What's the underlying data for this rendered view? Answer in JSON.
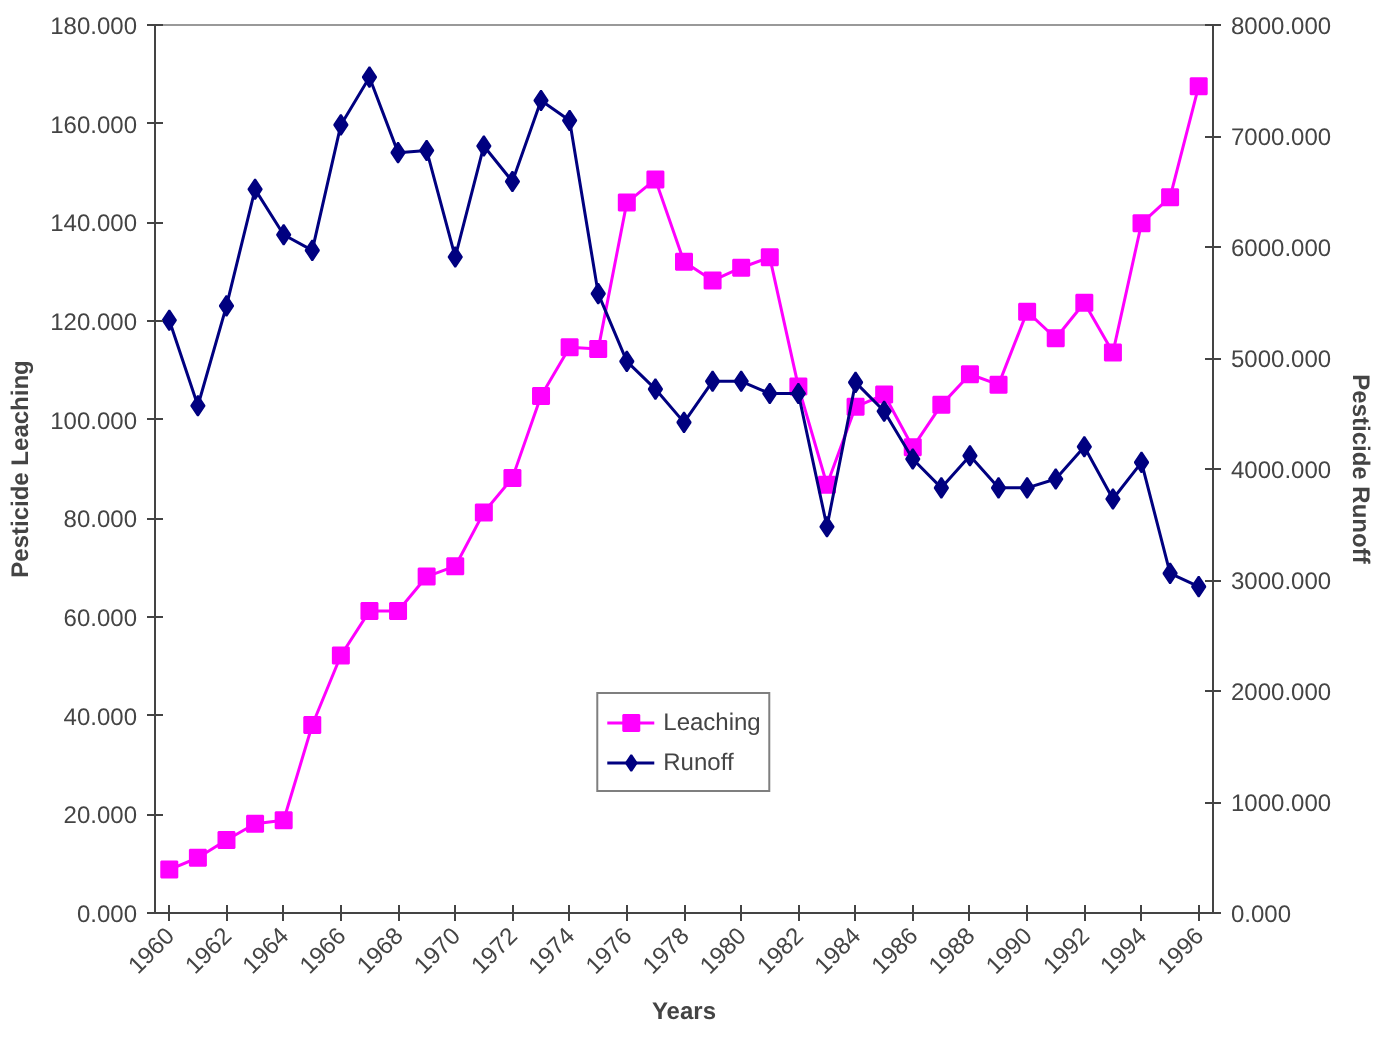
{
  "chart_data": {
    "type": "line",
    "xlabel": "Years",
    "ylabel": "Pesticide Leaching",
    "y2label": "Pesticide Runoff",
    "x": [
      1960,
      1961,
      1962,
      1963,
      1964,
      1965,
      1966,
      1967,
      1968,
      1969,
      1970,
      1971,
      1972,
      1973,
      1974,
      1975,
      1976,
      1977,
      1978,
      1979,
      1980,
      1981,
      1982,
      1983,
      1984,
      1985,
      1986,
      1987,
      1988,
      1989,
      1990,
      1991,
      1992,
      1993,
      1994,
      1995,
      1996
    ],
    "series": [
      {
        "name": "Leaching",
        "color": "#ff00ff",
        "marker": "square",
        "values": [
          8.8,
          11.2,
          14.8,
          18.1,
          18.8,
          38.1,
          52.2,
          61.2,
          61.2,
          68.2,
          70.3,
          81.2,
          88.2,
          104.8,
          114.7,
          114.3,
          144.0,
          148.7,
          132.0,
          128.2,
          130.8,
          132.9,
          106.7,
          86.8,
          102.6,
          105.1,
          94.4,
          103.0,
          109.2,
          107.1,
          121.9,
          116.5,
          123.7,
          113.6,
          139.8,
          145.1,
          167.6
        ]
      },
      {
        "name": "Runoff",
        "color": "#000080",
        "marker": "diamond",
        "axis": "y2",
        "values": [
          5340,
          4570,
          5470,
          6520,
          6110,
          5970,
          7100,
          7530,
          6850,
          6870,
          5910,
          6910,
          6590,
          7320,
          7140,
          5580,
          4970,
          4720,
          4420,
          4790,
          4790,
          4680,
          4680,
          3480,
          4780,
          4520,
          4090,
          3830,
          4120,
          3830,
          3830,
          3910,
          4200,
          3730,
          4060,
          3060,
          2940
        ]
      }
    ],
    "xlim": [
      1959.5,
      1996.5
    ],
    "xticks": [
      1960,
      1962,
      1964,
      1966,
      1968,
      1970,
      1972,
      1974,
      1976,
      1978,
      1980,
      1982,
      1984,
      1986,
      1988,
      1990,
      1992,
      1994,
      1996
    ],
    "ylim": [
      0,
      180
    ],
    "yticks": [
      {
        "value": 0,
        "label": "0.000"
      },
      {
        "value": 20,
        "label": "20.000"
      },
      {
        "value": 40,
        "label": "40.000"
      },
      {
        "value": 60,
        "label": "60.000"
      },
      {
        "value": 80,
        "label": "80.000"
      },
      {
        "value": 100,
        "label": "100.000"
      },
      {
        "value": 120,
        "label": "120.000"
      },
      {
        "value": 140,
        "label": "140.000"
      },
      {
        "value": 160,
        "label": "160.000"
      },
      {
        "value": 180,
        "label": "180.000"
      }
    ],
    "y2lim": [
      0,
      8000
    ],
    "y2ticks": [
      {
        "value": 0,
        "label": "0.000"
      },
      {
        "value": 1000,
        "label": "1000.000"
      },
      {
        "value": 2000,
        "label": "2000.000"
      },
      {
        "value": 3000,
        "label": "3000.000"
      },
      {
        "value": 4000,
        "label": "4000.000"
      },
      {
        "value": 5000,
        "label": "5000.000"
      },
      {
        "value": 6000,
        "label": "6000.000"
      },
      {
        "value": 7000,
        "label": "7000.000"
      },
      {
        "value": 8000,
        "label": "8000.000"
      }
    ],
    "legend": "bottom",
    "grid": false,
    "line_style": "solid"
  }
}
